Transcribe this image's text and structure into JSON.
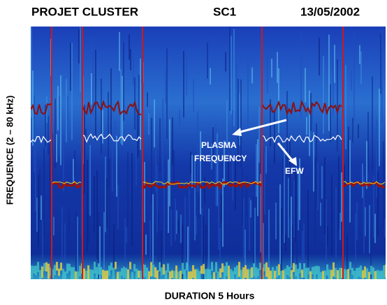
{
  "chart_data": {
    "type": "spectrogram",
    "title": "PROJET CLUSTER",
    "spacecraft": "SC1",
    "date": "13/05/2002",
    "xlabel": "DURATION 5 Hours",
    "ylabel": "FREQUENCE (2 – 80 kHz)",
    "annotations": [
      "PLASMA",
      "FREQUENCY",
      "EFW"
    ]
  }
}
